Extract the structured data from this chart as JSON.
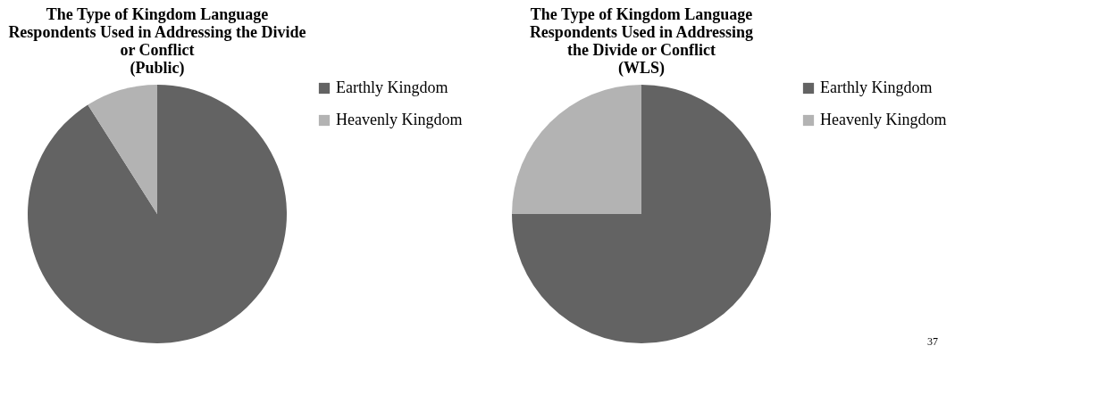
{
  "chart_data": [
    {
      "type": "pie",
      "title": "The Type of Kingdom Language\nRespondents Used in Addressing the Divide\nor Conflict\n(Public)",
      "categories": [
        "Earthly Kingdom",
        "Heavenly Kingdom"
      ],
      "values": [
        91,
        9
      ],
      "colors": [
        "#636363",
        "#b3b3b3"
      ],
      "legend": "right"
    },
    {
      "type": "pie",
      "title": "The Type of Kingdom Language\nRespondents Used in Addressing\nthe Divide or Conflict\n(WLS)",
      "categories": [
        "Earthly Kingdom",
        "Heavenly Kingdom"
      ],
      "values": [
        75,
        25
      ],
      "colors": [
        "#636363",
        "#b3b3b3"
      ],
      "legend": "right",
      "annotations": [
        "37"
      ]
    }
  ]
}
